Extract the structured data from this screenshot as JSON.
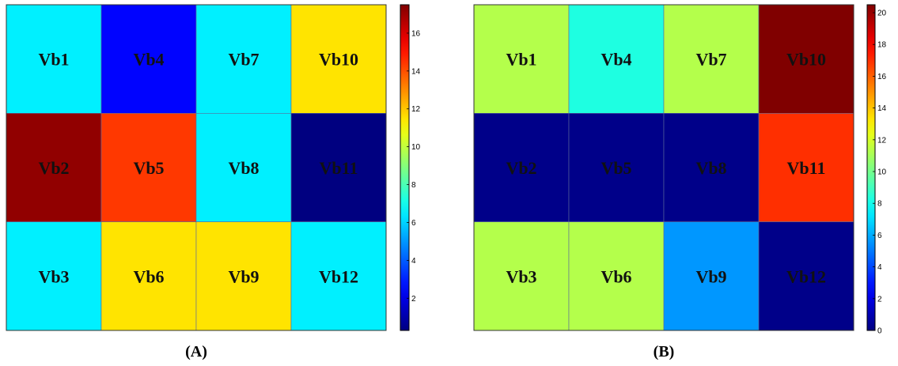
{
  "chart_data": [
    {
      "type": "heatmap",
      "panel_label": "(A)",
      "rows": 3,
      "cols": 4,
      "cells": [
        {
          "label": "Vb1",
          "value": 6.5
        },
        {
          "label": "Vb4",
          "value": 2.5
        },
        {
          "label": "Vb7",
          "value": 6.5
        },
        {
          "label": "Vb10",
          "value": 11.5
        },
        {
          "label": "Vb2",
          "value": 17.2
        },
        {
          "label": "Vb5",
          "value": 14.4
        },
        {
          "label": "Vb8",
          "value": 6.5
        },
        {
          "label": "Vb11",
          "value": 0.3
        },
        {
          "label": "Vb3",
          "value": 6.5
        },
        {
          "label": "Vb6",
          "value": 11.5
        },
        {
          "label": "Vb9",
          "value": 11.5
        },
        {
          "label": "Vb12",
          "value": 6.5
        }
      ],
      "colorbar": {
        "range": [
          0.3,
          17.5
        ],
        "ticks": [
          2,
          4,
          6,
          8,
          10,
          12,
          14,
          16
        ],
        "tick_labels": [
          "2",
          "4",
          "6",
          "8",
          "10",
          "12",
          "14",
          "16"
        ],
        "colormap": "jet"
      }
    },
    {
      "type": "heatmap",
      "panel_label": "(B)",
      "rows": 3,
      "cols": 4,
      "cells": [
        {
          "label": "Vb1",
          "value": 11.3
        },
        {
          "label": "Vb4",
          "value": 8.3
        },
        {
          "label": "Vb7",
          "value": 11.3
        },
        {
          "label": "Vb10",
          "value": 20.5
        },
        {
          "label": "Vb2",
          "value": 0.2
        },
        {
          "label": "Vb5",
          "value": 0.2
        },
        {
          "label": "Vb8",
          "value": 0.2
        },
        {
          "label": "Vb11",
          "value": 17.0
        },
        {
          "label": "Vb3",
          "value": 11.3
        },
        {
          "label": "Vb6",
          "value": 11.3
        },
        {
          "label": "Vb9",
          "value": 5.6
        },
        {
          "label": "Vb12",
          "value": 0.2
        }
      ],
      "colorbar": {
        "range": [
          0,
          20.5
        ],
        "ticks": [
          0,
          2,
          4,
          6,
          8,
          10,
          12,
          14,
          16,
          18,
          20
        ],
        "tick_labels": [
          "0",
          "2",
          "4",
          "6",
          "8",
          "10",
          "12",
          "14",
          "16",
          "18",
          "20"
        ],
        "colormap": "jet"
      }
    }
  ]
}
